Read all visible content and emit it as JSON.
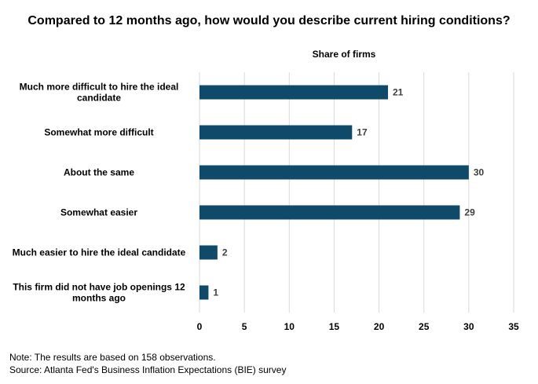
{
  "chart_data": {
    "type": "bar",
    "orientation": "horizontal",
    "title": "Compared to 12 months ago, how would you describe current hiring conditions?",
    "axis_title": "Share of firms",
    "categories": [
      [
        "Much more difficult to hire the ideal",
        "candidate"
      ],
      [
        "Somewhat more difficult"
      ],
      [
        "About the same"
      ],
      [
        "Somewhat easier"
      ],
      [
        "Much easier to hire the ideal candidate"
      ],
      [
        "This firm did not have job openings 12",
        "months ago"
      ]
    ],
    "values": [
      21,
      17,
      30,
      29,
      2,
      1
    ],
    "value_labels": [
      "21",
      "17",
      "30",
      "29",
      "2",
      "1"
    ],
    "xlim": [
      0,
      35
    ],
    "ticks": [
      0,
      5,
      10,
      15,
      20,
      25,
      30,
      35
    ],
    "grid": true,
    "bar_color": "#0f4a6b"
  },
  "notes": {
    "line1": "Note: The results are based on 158 observations.",
    "line2": "Source: Atlanta Fed's Business Inflation Expectations (BIE) survey"
  }
}
